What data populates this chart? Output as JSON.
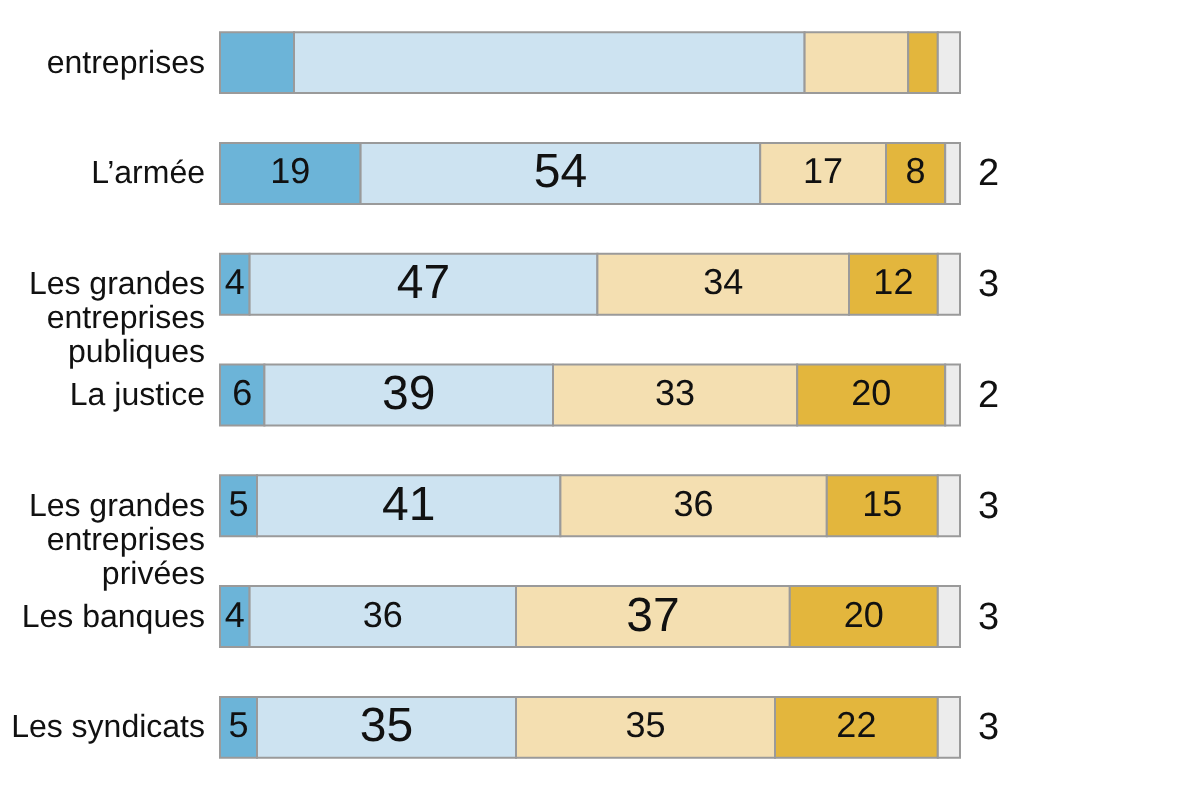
{
  "chart_data": {
    "type": "bar",
    "orientation": "horizontal",
    "stacked": true,
    "categories": [
      "entreprises",
      "L’armée",
      "Les grandes entreprises publiques",
      "La justice",
      "Les grandes entreprises privées",
      "Les banques",
      "Les syndicats"
    ],
    "series": [
      {
        "color": "#6cb4d8",
        "values": [
          10,
          19,
          4,
          6,
          5,
          4,
          5
        ],
        "value_labels": [
          null,
          "19",
          "4",
          "6",
          "5",
          "4",
          "5"
        ]
      },
      {
        "color": "#cde3f1",
        "values": [
          69,
          54,
          47,
          39,
          41,
          36,
          35
        ],
        "value_labels": [
          null,
          "54",
          "47",
          "39",
          "41",
          "36",
          "35"
        ]
      },
      {
        "color": "#f4dfb1",
        "values": [
          14,
          17,
          34,
          33,
          36,
          37,
          35
        ],
        "value_labels": [
          null,
          "17",
          "34",
          "33",
          "36",
          "37",
          "35"
        ]
      },
      {
        "color": "#e3b63d",
        "values": [
          4,
          8,
          12,
          20,
          15,
          20,
          22
        ],
        "value_labels": [
          null,
          "8",
          "12",
          "20",
          "15",
          "20",
          "22"
        ]
      },
      {
        "color": "#ececec",
        "values": [
          3,
          2,
          3,
          2,
          3,
          3,
          3
        ],
        "value_labels": [
          null,
          "2",
          "3",
          "2",
          "3",
          "3",
          "3"
        ]
      }
    ]
  }
}
